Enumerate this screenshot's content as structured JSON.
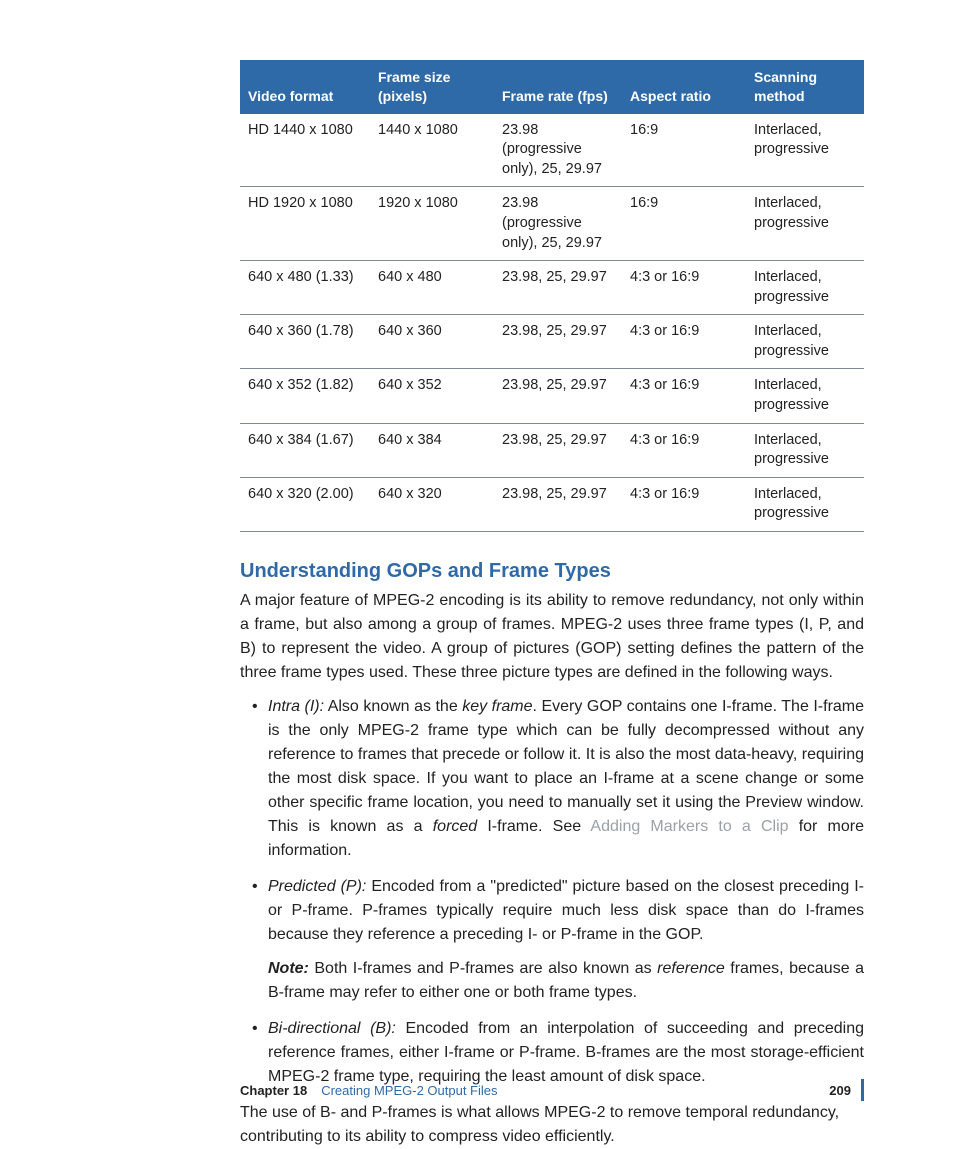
{
  "table": {
    "header_bg": "#2f6aa8",
    "header_fg": "#ffffff",
    "row_border": "#7d8a95",
    "columns": [
      "Video format",
      "Frame size (pixels)",
      "Frame rate (fps)",
      "Aspect ratio",
      "Scanning method"
    ],
    "rows": [
      [
        "HD 1440 x 1080",
        "1440 x 1080",
        "23.98 (progressive only), 25, 29.97",
        "16:9",
        "Interlaced, progressive"
      ],
      [
        "HD 1920 x 1080",
        "1920 x 1080",
        "23.98 (progressive only), 25, 29.97",
        "16:9",
        "Interlaced, progressive"
      ],
      [
        "640 x 480 (1.33)",
        "640 x 480",
        "23.98, 25, 29.97",
        "4:3 or 16:9",
        "Interlaced, progressive"
      ],
      [
        "640 x 360 (1.78)",
        "640 x 360",
        "23.98, 25, 29.97",
        "4:3 or 16:9",
        "Interlaced, progressive"
      ],
      [
        "640 x 352 (1.82)",
        "640 x 352",
        "23.98, 25, 29.97",
        "4:3 or 16:9",
        "Interlaced, progressive"
      ],
      [
        "640 x 384 (1.67)",
        "640 x 384",
        "23.98, 25, 29.97",
        "4:3 or 16:9",
        "Interlaced, progressive"
      ],
      [
        "640 x 320 (2.00)",
        "640 x 320",
        "23.98, 25, 29.97",
        "4:3 or 16:9",
        "Interlaced, progressive"
      ]
    ]
  },
  "section": {
    "heading": "Understanding GOPs and Frame Types",
    "intro": "A major feature of MPEG-2 encoding is its ability to remove redundancy, not only within a frame, but also among a group of frames. MPEG-2 uses three frame types (I, P, and B) to represent the video. A group of pictures (GOP) setting defines the pattern of the three frame types used. These three picture types are defined in the following ways."
  },
  "items": {
    "intra": {
      "label": "Intra (I):",
      "pre": "  Also known as the ",
      "keyframe": "key frame",
      "mid": ". Every GOP contains one I-frame. The I-frame is the only MPEG-2 frame type which can be fully decompressed without any reference to frames that precede or follow it. It is also the most data-heavy, requiring the most disk space. If you want to place an I-frame at a scene change or some other specific frame location, you need to manually set it using the Preview window. This is known as a ",
      "forced": "forced",
      "aft": " I-frame. See ",
      "link": "Adding Markers to a Clip",
      "tail": " for more information."
    },
    "predicted": {
      "label": "Predicted (P):",
      "body": "  Encoded from a \"predicted\" picture based on the closest preceding I- or P-frame. P-frames typically require much less disk space than do I-frames because they reference a preceding I- or P-frame in the GOP."
    },
    "note": {
      "label": "Note:",
      "pre": "  Both I-frames and P-frames are also known as ",
      "ref": "reference",
      "aft": " frames, because a B-frame may refer to either one or both frame types."
    },
    "bidir": {
      "label": "Bi-directional (B):",
      "body": "  Encoded from an interpolation of succeeding and preceding reference frames, either I-frame or P-frame. B-frames are the most storage-efficient MPEG-2 frame type, requiring the least amount of disk space."
    }
  },
  "closing": "The use of B- and P-frames is what allows MPEG-2 to remove temporal redundancy, contributing to its ability to compress video efficiently.",
  "footer": {
    "chapter": "Chapter 18",
    "title": "Creating MPEG-2 Output Files",
    "page": "209"
  }
}
